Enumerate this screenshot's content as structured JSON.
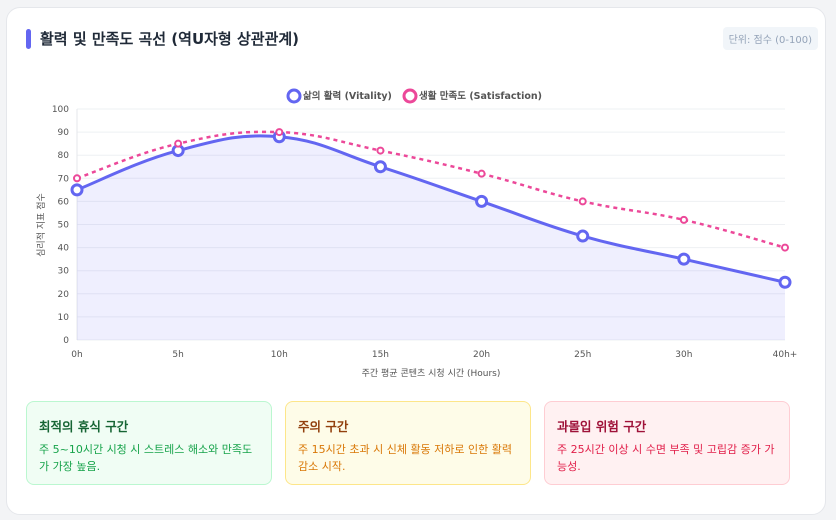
{
  "header": {
    "title": "활력 및 만족도 곡선 (역U자형 상관관계)",
    "unit_badge": "단위: 점수 (0-100)"
  },
  "chart_data": {
    "type": "line",
    "categories": [
      "0h",
      "5h",
      "10h",
      "15h",
      "20h",
      "25h",
      "30h",
      "40h+"
    ],
    "series": [
      {
        "name": "삶의 활력 (Vitality)",
        "values": [
          65,
          82,
          88,
          75,
          60,
          45,
          35,
          25
        ],
        "color": "#6366f1",
        "style": "solid",
        "fill": true
      },
      {
        "name": "생활 만족도 (Satisfaction)",
        "values": [
          70,
          85,
          90,
          82,
          72,
          60,
          52,
          40
        ],
        "color": "#ec4899",
        "style": "dashed"
      }
    ],
    "xlabel": "주간 평균 콘텐츠 시청 시간 (Hours)",
    "ylabel": "심리적 지표 점수",
    "ylim": [
      0,
      100
    ],
    "yticks": [
      0,
      10,
      20,
      30,
      40,
      50,
      60,
      70,
      80,
      90,
      100
    ],
    "grid": true,
    "legend": "top"
  },
  "zones": [
    {
      "title": "최적의 휴식 구간",
      "text": "주 5~10시간 시청 시 스트레스 해소와 만족도가 가장 높음.",
      "bg": "#f0fdf4",
      "border": "#bbf7d0",
      "title_color": "#166534",
      "text_color": "#16a34a"
    },
    {
      "title": "주의 구간",
      "text": "주 15시간 초과 시 신체 활동 저하로 인한 활력 감소 시작.",
      "bg": "#fefce8",
      "border": "#fde68a",
      "title_color": "#92400e",
      "text_color": "#d97706"
    },
    {
      "title": "과몰입 위험 구간",
      "text": "주 25시간 이상 시 수면 부족 및 고립감 증가 가능성.",
      "bg": "#fff1f2",
      "border": "#fecdd3",
      "title_color": "#9f1239",
      "text_color": "#e11d48"
    }
  ]
}
